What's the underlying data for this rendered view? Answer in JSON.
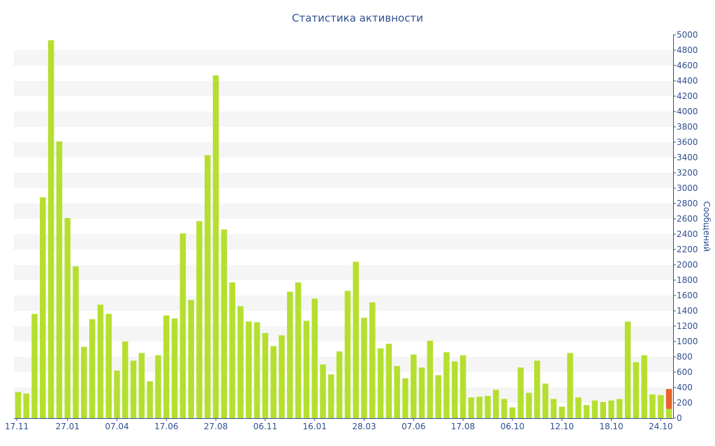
{
  "chart_data": {
    "type": "bar",
    "title": "Статистика активности",
    "ylabel": "Сообщений",
    "xlabel": "",
    "ylim": [
      0,
      5000
    ],
    "y_ticks": [
      0,
      200,
      400,
      600,
      800,
      1000,
      1200,
      1400,
      1600,
      1800,
      2000,
      2200,
      2400,
      2600,
      2800,
      3000,
      3200,
      3400,
      3600,
      3800,
      4000,
      4200,
      4400,
      4600,
      4800,
      5000
    ],
    "x_tick_labels": [
      {
        "label": "17.11",
        "index": 0
      },
      {
        "label": "27.01",
        "index": 6
      },
      {
        "label": "07.04",
        "index": 12
      },
      {
        "label": "17.06",
        "index": 18
      },
      {
        "label": "27.08",
        "index": 24
      },
      {
        "label": "06.11",
        "index": 30
      },
      {
        "label": "16.01",
        "index": 36
      },
      {
        "label": "28.03",
        "index": 42
      },
      {
        "label": "07.06",
        "index": 48
      },
      {
        "label": "17.08",
        "index": 54
      },
      {
        "label": "06.10",
        "index": 60
      },
      {
        "label": "12.10",
        "index": 66
      },
      {
        "label": "18.10",
        "index": 72
      },
      {
        "label": "24.10",
        "index": 78
      }
    ],
    "grid": true,
    "y_axis_position": "right",
    "colors": {
      "bar": "#b5df2f",
      "highlight": "#e8622c",
      "text": "#2f4f8f",
      "band": "#f5f5f5"
    },
    "values": [
      340,
      320,
      1360,
      2880,
      4930,
      3610,
      2610,
      1980,
      930,
      1290,
      1480,
      1360,
      620,
      1000,
      750,
      850,
      480,
      820,
      1340,
      1300,
      2410,
      1540,
      2570,
      3430,
      4470,
      2460,
      1770,
      1460,
      1260,
      1250,
      1110,
      940,
      1080,
      1650,
      1770,
      1270,
      1560,
      700,
      570,
      870,
      1660,
      2040,
      1310,
      1510,
      910,
      970,
      680,
      520,
      830,
      660,
      1010,
      560,
      860,
      740,
      820,
      270,
      280,
      290,
      370,
      250,
      140,
      660,
      330,
      750,
      450,
      250,
      150,
      850,
      270,
      170,
      230,
      210,
      230,
      250,
      1260,
      730,
      820,
      310,
      300,
      120
    ],
    "highlight": {
      "index": 79,
      "base": 120,
      "top": 380
    }
  }
}
